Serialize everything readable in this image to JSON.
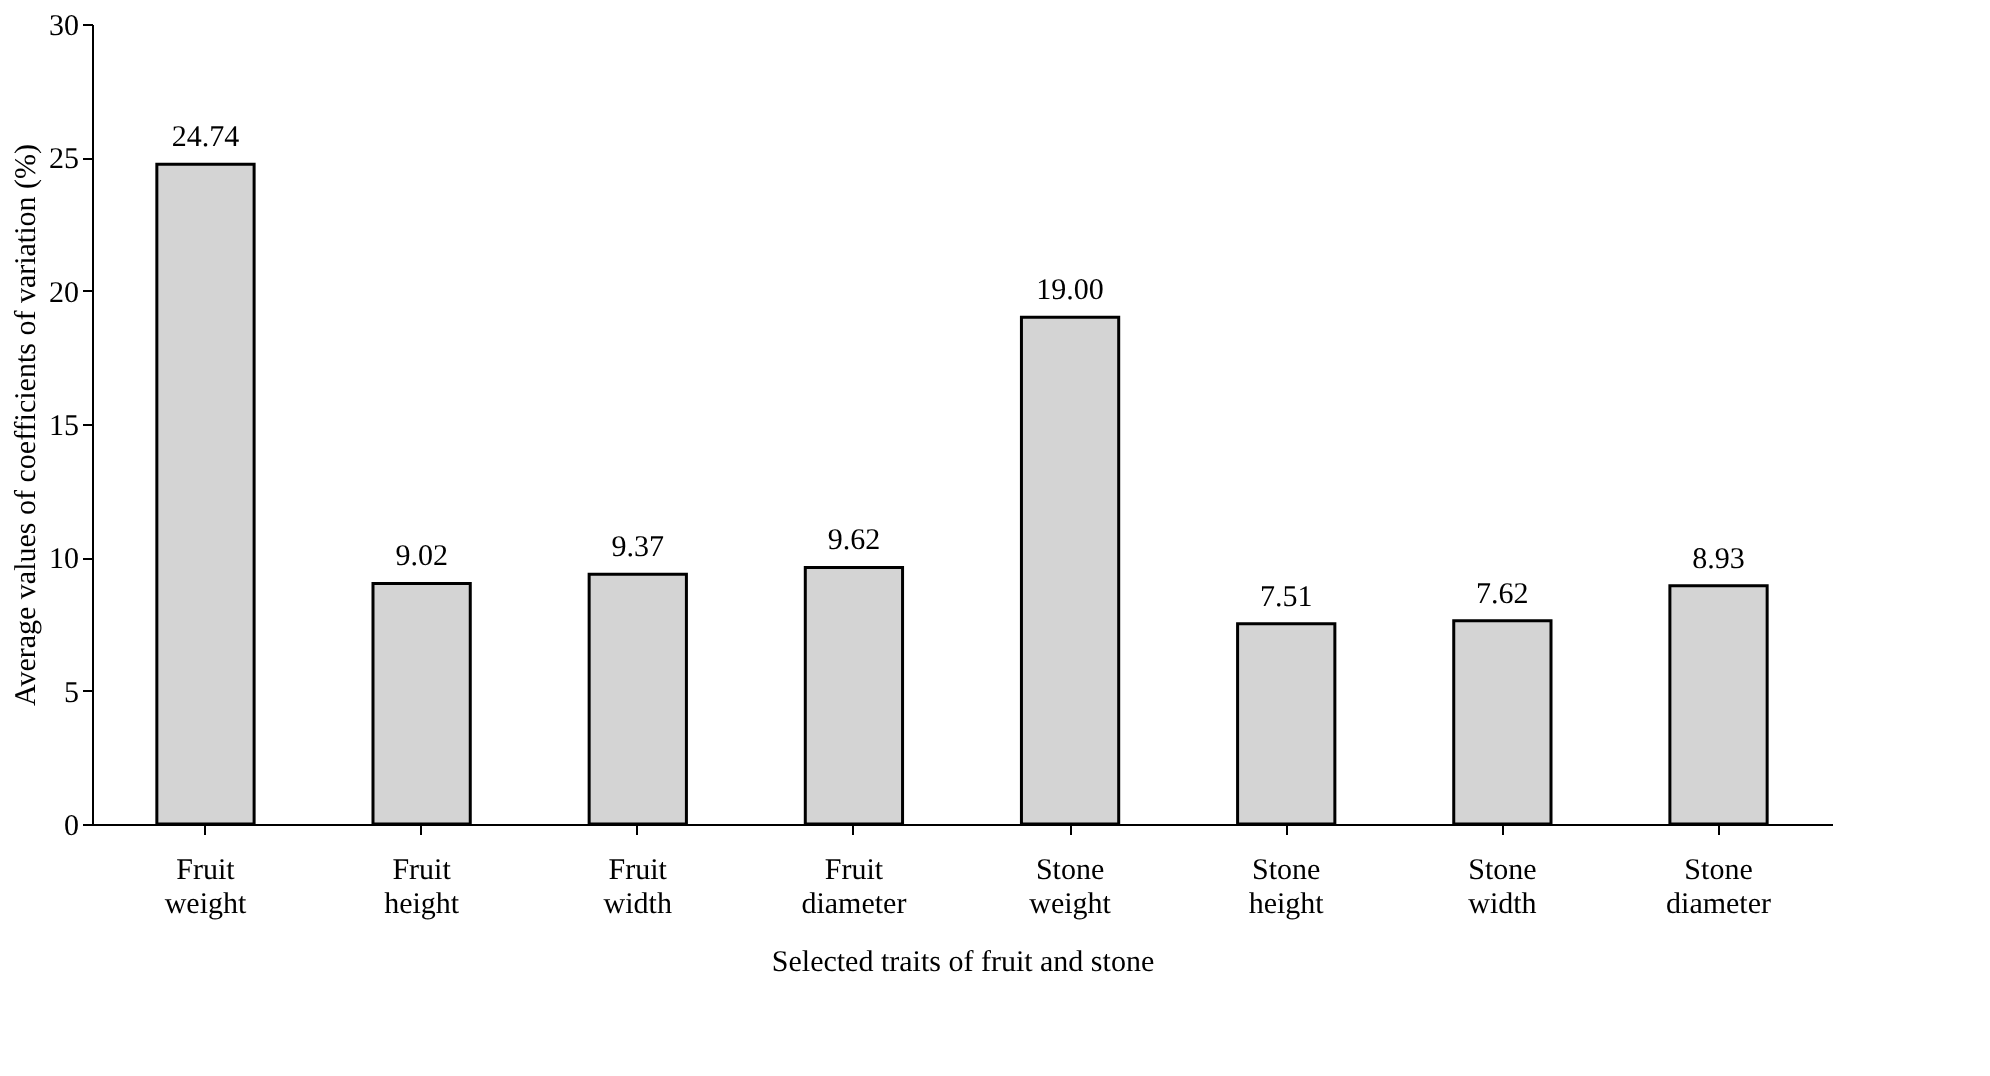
{
  "chart_data": {
    "type": "bar",
    "xlabel": "Selected traits of fruit and stone",
    "ylabel": "Average values of coefficients of variation (%)",
    "categories": [
      "Fruit weight",
      "Fruit height",
      "Fruit width",
      "Fruit diameter",
      "Stone weight",
      "Stone height",
      "Stone width",
      "Stone diameter"
    ],
    "values": [
      24.74,
      9.02,
      9.37,
      9.62,
      19.0,
      7.51,
      7.62,
      8.93
    ],
    "value_labels": [
      "24.74",
      "9.02",
      "9.37",
      "9.62",
      "19.00",
      "7.51",
      "7.62",
      "8.93"
    ],
    "color": "#d4d4d4",
    "ylim": [
      0,
      30
    ],
    "yticks": [
      0,
      5,
      10,
      15,
      20,
      25,
      30
    ],
    "grid": false
  }
}
